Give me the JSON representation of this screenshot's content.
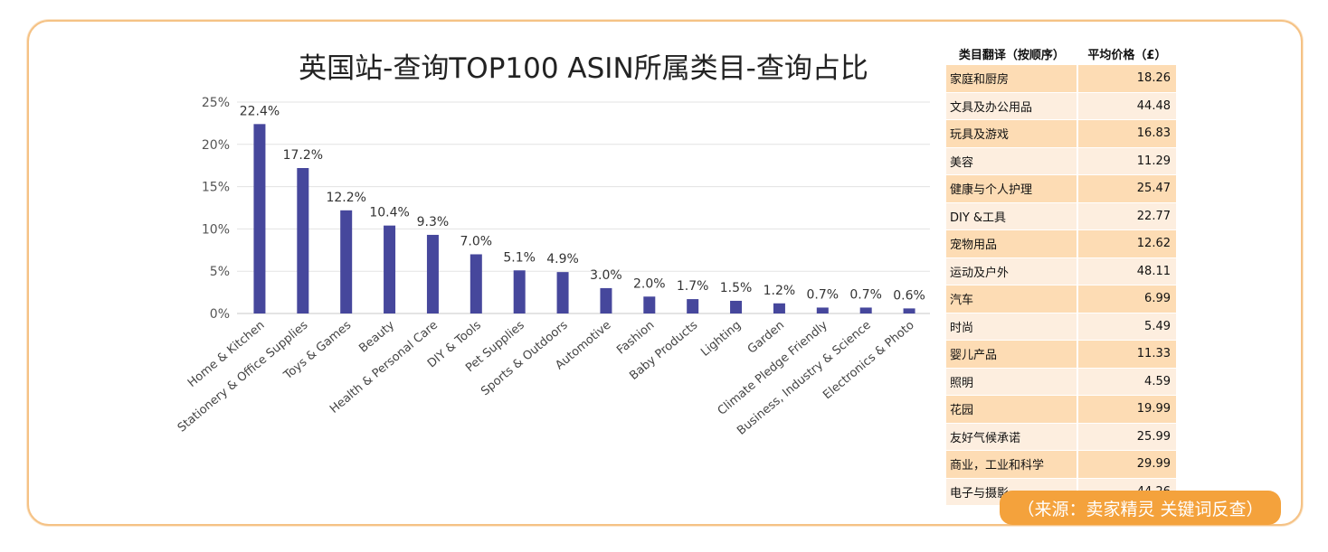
{
  "chart_data": {
    "type": "bar",
    "title": "英国站-查询TOP100 ASIN所属类目-查询占比",
    "categories": [
      "Home & Kitchen",
      "Stationery & Office Supplies",
      "Toys & Games",
      "Beauty",
      "Health & Personal Care",
      "DIY & Tools",
      "Pet Supplies",
      "Sports & Outdoors",
      "Automotive",
      "Fashion",
      "Baby Products",
      "Lighting",
      "Garden",
      "Climate Pledge Friendly",
      "Business, Industry & Science",
      "Electronics & Photo"
    ],
    "values": [
      22.4,
      17.2,
      12.2,
      10.4,
      9.3,
      7.0,
      5.1,
      4.9,
      3.0,
      2.0,
      1.7,
      1.5,
      1.2,
      0.7,
      0.7,
      0.6
    ],
    "value_labels": [
      "22.4%",
      "17.2%",
      "12.2%",
      "10.4%",
      "9.3%",
      "7.0%",
      "5.1%",
      "4.9%",
      "3.0%",
      "2.0%",
      "1.7%",
      "1.5%",
      "1.2%",
      "0.7%",
      "0.7%",
      "0.6%"
    ],
    "ylim": [
      0,
      25
    ],
    "yticks": [
      0,
      5,
      10,
      15,
      20,
      25
    ],
    "ytick_labels": [
      "0%",
      "5%",
      "10%",
      "15%",
      "20%",
      "25%"
    ],
    "bar_color": "#46479c",
    "grid": true
  },
  "table": {
    "headers": [
      "类目翻译（按顺序）",
      "平均价格（£）"
    ],
    "rows": [
      [
        "家庭和厨房",
        "18.26"
      ],
      [
        "文具及办公用品",
        "44.48"
      ],
      [
        "玩具及游戏",
        "16.83"
      ],
      [
        "美容",
        "11.29"
      ],
      [
        "健康与个人护理",
        "25.47"
      ],
      [
        "DIY &工具",
        "22.77"
      ],
      [
        "宠物用品",
        "12.62"
      ],
      [
        "运动及户外",
        "48.11"
      ],
      [
        "汽车",
        "6.99"
      ],
      [
        "时尚",
        "5.49"
      ],
      [
        "婴儿产品",
        "11.33"
      ],
      [
        "照明",
        "4.59"
      ],
      [
        "花园",
        "19.99"
      ],
      [
        "友好气候承诺",
        "25.99"
      ],
      [
        "商业，工业和科学",
        "29.99"
      ],
      [
        "电子与摄影",
        "44.26"
      ]
    ]
  },
  "source": "（来源：卖家精灵 关键词反查）",
  "colors": {
    "accent": "#f4a23c",
    "border": "#f5c285"
  }
}
